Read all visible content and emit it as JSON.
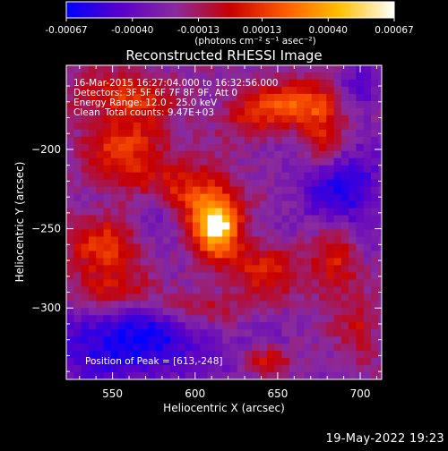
{
  "chart_data": {
    "type": "heatmap",
    "title": "Reconstructed RHESSI Image",
    "xlabel": "Heliocentric X (arcsec)",
    "ylabel": "Heliocentric Y (arcsec)",
    "xlim": [
      522,
      713
    ],
    "ylim": [
      -345,
      -147
    ],
    "x_ticks": [
      550,
      600,
      650,
      700
    ],
    "y_ticks": [
      -200,
      -250,
      -300
    ],
    "colorbar": {
      "range": [
        -0.00067,
        0.00067
      ],
      "ticks": [
        "-0.00067",
        "-0.00040",
        "-0.00013",
        "0.00013",
        "0.00040",
        "0.00067"
      ],
      "tick_values": [
        -0.00067,
        -0.0004,
        -0.00013,
        0.00013,
        0.0004,
        0.00067
      ],
      "units": "(photons cm⁻² s⁻¹ asec⁻²)"
    },
    "annotations": {
      "time_range": "16-Mar-2015 16:27:04.000 to 16:32:56.000",
      "detectors": "Detectors: 3F 5F 6F 7F 8F 9F, Att 0",
      "energy": "Energy Range: 12.0 - 25.0 keV",
      "method": "Clean",
      "total_counts": "Total counts: 9.47E+03",
      "peak": "Position of Peak = [613,-248]"
    },
    "peak": [
      613,
      -248
    ],
    "sources_norm_intensity": [
      {
        "x": 613,
        "y": -248,
        "amp": 1.0,
        "sx": 10,
        "sy": 14
      },
      {
        "x": 598,
        "y": -228,
        "amp": 0.45,
        "sx": 16,
        "sy": 12
      },
      {
        "x": 560,
        "y": -200,
        "amp": 0.5,
        "sx": 18,
        "sy": 18
      },
      {
        "x": 555,
        "y": -165,
        "amp": 0.4,
        "sx": 22,
        "sy": 10
      },
      {
        "x": 665,
        "y": -170,
        "amp": 0.55,
        "sx": 16,
        "sy": 10
      },
      {
        "x": 678,
        "y": -190,
        "amp": 0.4,
        "sx": 10,
        "sy": 14
      },
      {
        "x": 635,
        "y": -178,
        "amp": 0.35,
        "sx": 14,
        "sy": 12
      },
      {
        "x": 545,
        "y": -262,
        "amp": 0.45,
        "sx": 16,
        "sy": 14
      },
      {
        "x": 548,
        "y": -290,
        "amp": 0.45,
        "sx": 18,
        "sy": 10
      },
      {
        "x": 642,
        "y": -275,
        "amp": 0.4,
        "sx": 18,
        "sy": 12
      },
      {
        "x": 685,
        "y": -272,
        "amp": 0.4,
        "sx": 10,
        "sy": 18
      },
      {
        "x": 600,
        "y": -300,
        "amp": 0.35,
        "sx": 22,
        "sy": 8
      },
      {
        "x": 645,
        "y": -333,
        "amp": 0.35,
        "sx": 10,
        "sy": 6
      },
      {
        "x": 700,
        "y": -315,
        "amp": 0.3,
        "sx": 8,
        "sy": 14
      }
    ],
    "negative_regions_norm_intensity": [
      {
        "x": 560,
        "y": -320,
        "amp": -0.55,
        "sx": 35,
        "sy": 20
      },
      {
        "x": 690,
        "y": -225,
        "amp": -0.45,
        "sx": 18,
        "sy": 20
      },
      {
        "x": 700,
        "y": -160,
        "amp": -0.3,
        "sx": 10,
        "sy": 12
      },
      {
        "x": 575,
        "y": -240,
        "amp": -0.25,
        "sx": 10,
        "sy": 10
      }
    ],
    "colormap_stops": [
      "#0000ff",
      "#5a00c8",
      "#8a2b9e",
      "#c80000",
      "#ff5a00",
      "#ffc000",
      "#ffffff"
    ]
  },
  "footer": {
    "date": "19-May-2022 19:23"
  }
}
